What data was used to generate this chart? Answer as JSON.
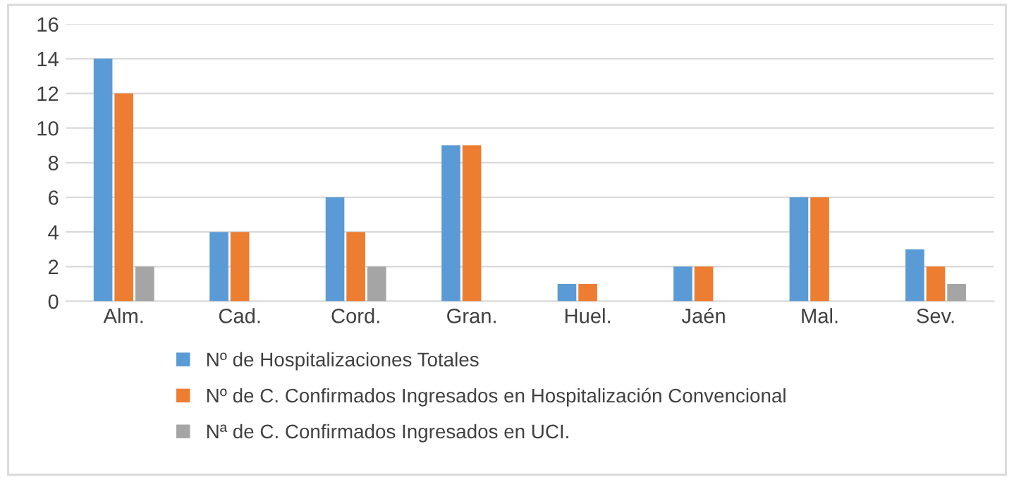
{
  "chart_data": {
    "type": "bar",
    "categories": [
      "Alm.",
      "Cad.",
      "Cord.",
      "Gran.",
      "Huel.",
      "Jaén",
      "Mal.",
      "Sev."
    ],
    "series": [
      {
        "name": "Nº de Hospitalizaciones Totales",
        "color": "#5b9bd5",
        "values": [
          14,
          4,
          6,
          9,
          1,
          2,
          6,
          3
        ]
      },
      {
        "name": "Nº de C. Confirmados Ingresados en Hospitalización Convencional",
        "color": "#ed7d31",
        "values": [
          12,
          4,
          4,
          9,
          1,
          2,
          6,
          2
        ]
      },
      {
        "name": "Nª de C. Confirmados Ingresados en UCI.",
        "color": "#a5a5a5",
        "values": [
          2,
          0,
          2,
          0,
          0,
          0,
          0,
          1
        ]
      }
    ],
    "ylim": [
      0,
      16
    ],
    "yticks": [
      0,
      2,
      4,
      6,
      8,
      10,
      12,
      14,
      16
    ],
    "grid": "y",
    "legend": "bottom"
  }
}
